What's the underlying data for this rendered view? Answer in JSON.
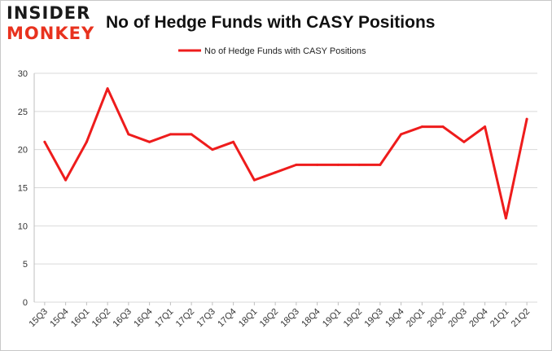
{
  "logo": {
    "line1": "INSIDER",
    "line2": "MONKEY"
  },
  "chart_data": {
    "type": "line",
    "title": "No of Hedge Funds with CASY Positions",
    "xlabel": "",
    "ylabel": "",
    "ylim": [
      0,
      30
    ],
    "yticks": [
      0,
      5,
      10,
      15,
      20,
      25,
      30
    ],
    "grid": true,
    "legend_position": "top-center",
    "categories": [
      "15Q3",
      "15Q4",
      "16Q1",
      "16Q2",
      "16Q3",
      "16Q4",
      "17Q1",
      "17Q2",
      "17Q3",
      "17Q4",
      "18Q1",
      "18Q2",
      "18Q3",
      "18Q4",
      "19Q1",
      "19Q2",
      "19Q3",
      "19Q4",
      "20Q1",
      "20Q2",
      "20Q3",
      "20Q4",
      "21Q1",
      "21Q2"
    ],
    "series": [
      {
        "name": "No of Hedge Funds with CASY Positions",
        "color": "#ee1c1c",
        "values": [
          21,
          16,
          21,
          28,
          22,
          21,
          22,
          22,
          20,
          21,
          16,
          17,
          18,
          18,
          18,
          18,
          18,
          22,
          23,
          23,
          21,
          23,
          11,
          24
        ]
      }
    ]
  }
}
